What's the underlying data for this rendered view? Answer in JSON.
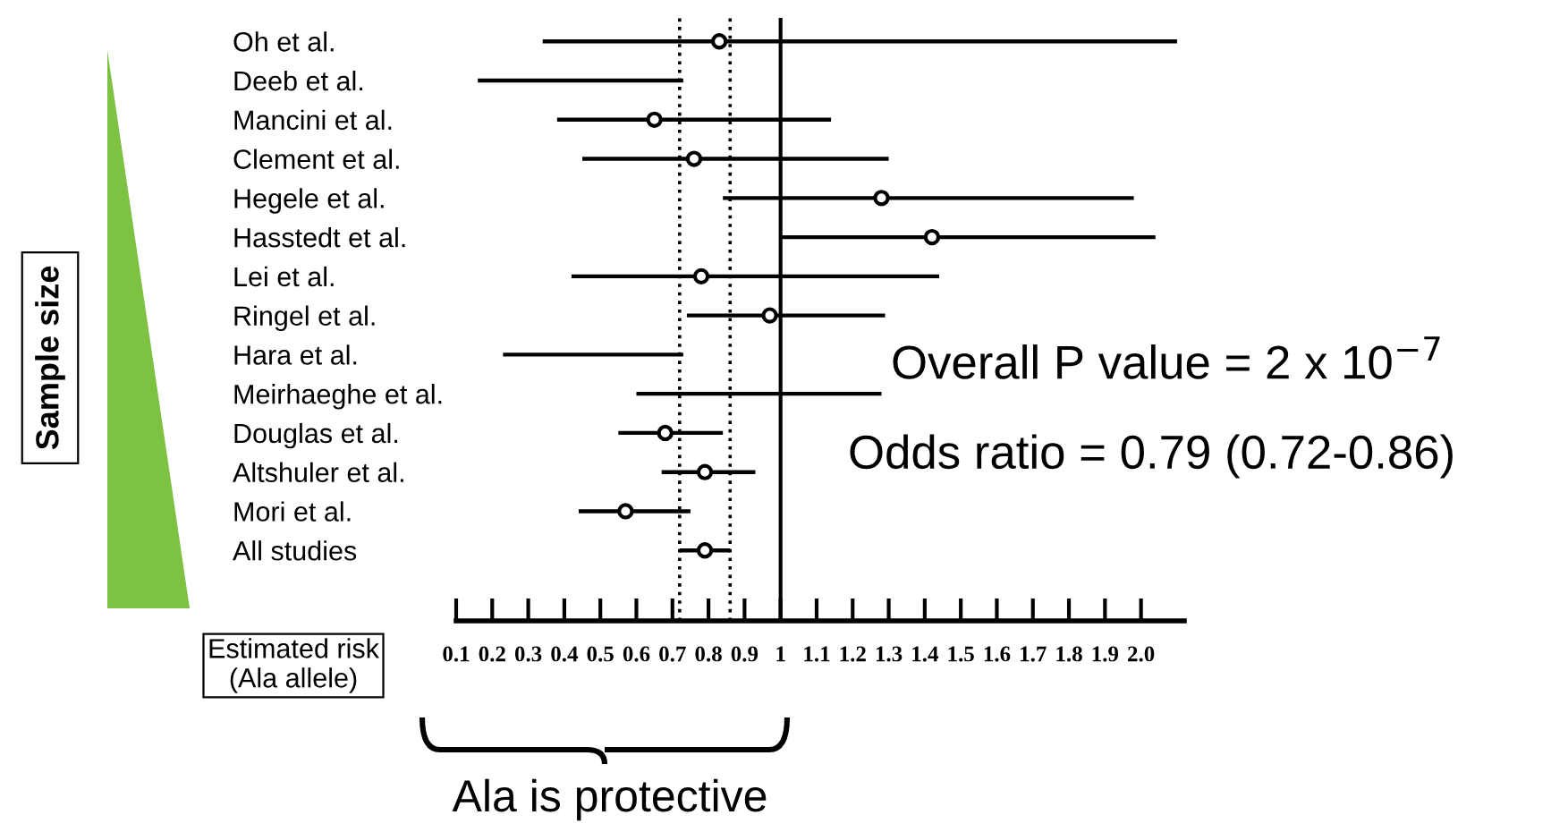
{
  "chart_data": {
    "type": "bar",
    "orientation": "horizontal",
    "categories": [
      "Oh et al.",
      "Deeb et al.",
      "Mancini et al.",
      "Clement et al.",
      "Hegele et al.",
      "Hasstedt et al.",
      "Lei et al.",
      "Ringel et al.",
      "Hara et al.",
      "Meirhaeghe et al.",
      "Douglas et al.",
      "Altshuler et al.",
      "Mori et al.",
      "All studies"
    ],
    "series": [
      {
        "color": "#000000",
        "base": [
          0.34,
          0.16,
          0.38,
          0.45,
          0.84,
          1.0,
          0.42,
          0.74,
          0.23,
          0.6,
          0.55,
          0.67,
          0.44,
          0.72
        ],
        "values": [
          1.76,
          0.57,
          0.76,
          0.85,
          1.14,
          1.04,
          1.02,
          0.55,
          0.5,
          0.68,
          0.29,
          0.26,
          0.31,
          0.14
        ]
      },
      {
        "type": "scatter",
        "color": "#000000",
        "marker": "circle",
        "values": [
          0.83,
          null,
          0.65,
          0.76,
          1.28,
          1.42,
          0.78,
          0.97,
          null,
          null,
          0.68,
          0.79,
          0.57,
          0.79
        ]
      }
    ],
    "xlim": [
      0.1,
      2.12
    ],
    "xticks": [
      0.1,
      0.2,
      0.3,
      0.4,
      0.5,
      0.6,
      0.7,
      0.8,
      0.9,
      1,
      1.1,
      1.2,
      1.3,
      1.4,
      1.5,
      1.6,
      1.7,
      1.8,
      1.9,
      {
        "value": 2.0,
        "label": "2.0"
      }
    ],
    "xlabel": "Estimated risk\n(Ala allele)",
    "ref_lines": [
      {
        "axis": "x",
        "value": 1,
        "line_style": "solid"
      },
      {
        "axis": "x",
        "value": 0.72,
        "line_style": "dotted"
      },
      {
        "axis": "x",
        "value": 0.86,
        "line_style": "dotted"
      }
    ],
    "annotations": [
      "Sample size",
      "Overall P value = 2 x 10$^{−7}$",
      "Odds ratio = 0.79 (0.72-0.86)",
      "Ala is protective"
    ]
  }
}
